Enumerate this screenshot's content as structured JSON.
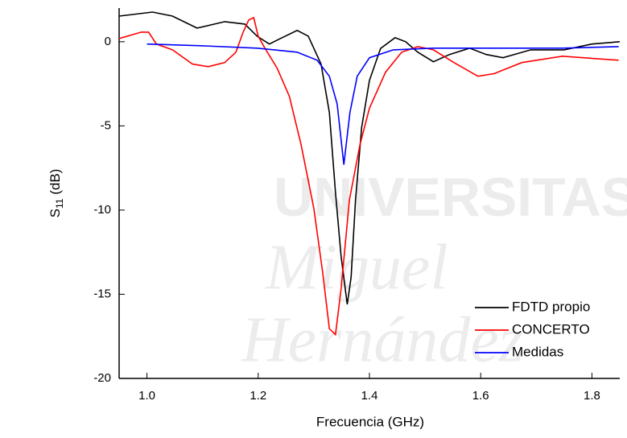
{
  "chart_data": {
    "type": "line",
    "xlabel": "Frecuencia (GHz)",
    "ylabel": [
      "S",
      "11",
      " (dB)"
    ],
    "watermark": [
      "UNIVERSITAS",
      "Miguel",
      "Hernández"
    ],
    "xlim": [
      0.95,
      1.85
    ],
    "ylim": [
      -20,
      2
    ],
    "xticks": [
      {
        "value": 1,
        "label": "1.0"
      },
      {
        "value": 1.2,
        "label": "1.2"
      },
      {
        "value": 1.4,
        "label": "1.4"
      },
      {
        "value": 1.6,
        "label": "1.6"
      },
      {
        "value": 1.8,
        "label": "1.8"
      }
    ],
    "yticks": [
      0,
      -5,
      -10,
      -15,
      -20
    ],
    "legend": "lower right",
    "series": [
      {
        "name": "FDTD propio",
        "color": "#000000",
        "x": [
          0.95,
          1.01,
          1.046,
          1.09,
          1.14,
          1.176,
          1.198,
          1.22,
          1.24,
          1.27,
          1.29,
          1.313,
          1.328,
          1.339,
          1.349,
          1.36,
          1.367,
          1.375,
          1.386,
          1.4,
          1.42,
          1.446,
          1.465,
          1.487,
          1.515,
          1.544,
          1.58,
          1.61,
          1.64,
          1.69,
          1.75,
          1.8,
          1.85
        ],
        "values": [
          1.52,
          1.76,
          1.52,
          0.81,
          1.19,
          1.05,
          0.33,
          -0.14,
          0.19,
          0.67,
          0.33,
          -1.33,
          -4.2,
          -8.95,
          -12.76,
          -15.6,
          -14.0,
          -9.4,
          -5.1,
          -2.3,
          -0.4,
          0.24,
          0,
          -0.62,
          -1.19,
          -0.76,
          -0.38,
          -0.76,
          -0.95,
          -0.48,
          -0.48,
          -0.14,
          0
        ]
      },
      {
        "name": "CONCERTO",
        "color": "#ff0000",
        "x": [
          0.95,
          0.99,
          1.003,
          1.017,
          1.046,
          1.082,
          1.11,
          1.14,
          1.16,
          1.173,
          1.183,
          1.192,
          1.2,
          1.212,
          1.234,
          1.256,
          1.277,
          1.3,
          1.316,
          1.328,
          1.339,
          1.349,
          1.364,
          1.383,
          1.4,
          1.429,
          1.458,
          1.487,
          1.515,
          1.552,
          1.595,
          1.624,
          1.674,
          1.747,
          1.804,
          1.848
        ],
        "values": [
          0.19,
          0.57,
          0.57,
          -0.14,
          -0.48,
          -1.33,
          -1.48,
          -1.24,
          -0.62,
          0.57,
          1.29,
          1.43,
          0.33,
          -0.38,
          -1.57,
          -3.24,
          -6.1,
          -9.9,
          -13.7,
          -17.05,
          -17.4,
          -14.67,
          -9.4,
          -6.1,
          -3.95,
          -1.81,
          -0.62,
          -0.29,
          -0.48,
          -1.24,
          -2.05,
          -1.9,
          -1.24,
          -0.86,
          -1.0,
          -1.1
        ]
      },
      {
        "name": "Medidas",
        "color": "#0000ff",
        "x": [
          1.0,
          1.097,
          1.198,
          1.27,
          1.306,
          1.328,
          1.342,
          1.354,
          1.365,
          1.378,
          1.4,
          1.443,
          1.515,
          1.631,
          1.747,
          1.848
        ],
        "values": [
          -0.14,
          -0.24,
          -0.38,
          -0.62,
          -1.1,
          -2.05,
          -3.7,
          -7.3,
          -4.2,
          -2.05,
          -0.95,
          -0.48,
          -0.38,
          -0.38,
          -0.38,
          -0.29
        ]
      }
    ]
  }
}
